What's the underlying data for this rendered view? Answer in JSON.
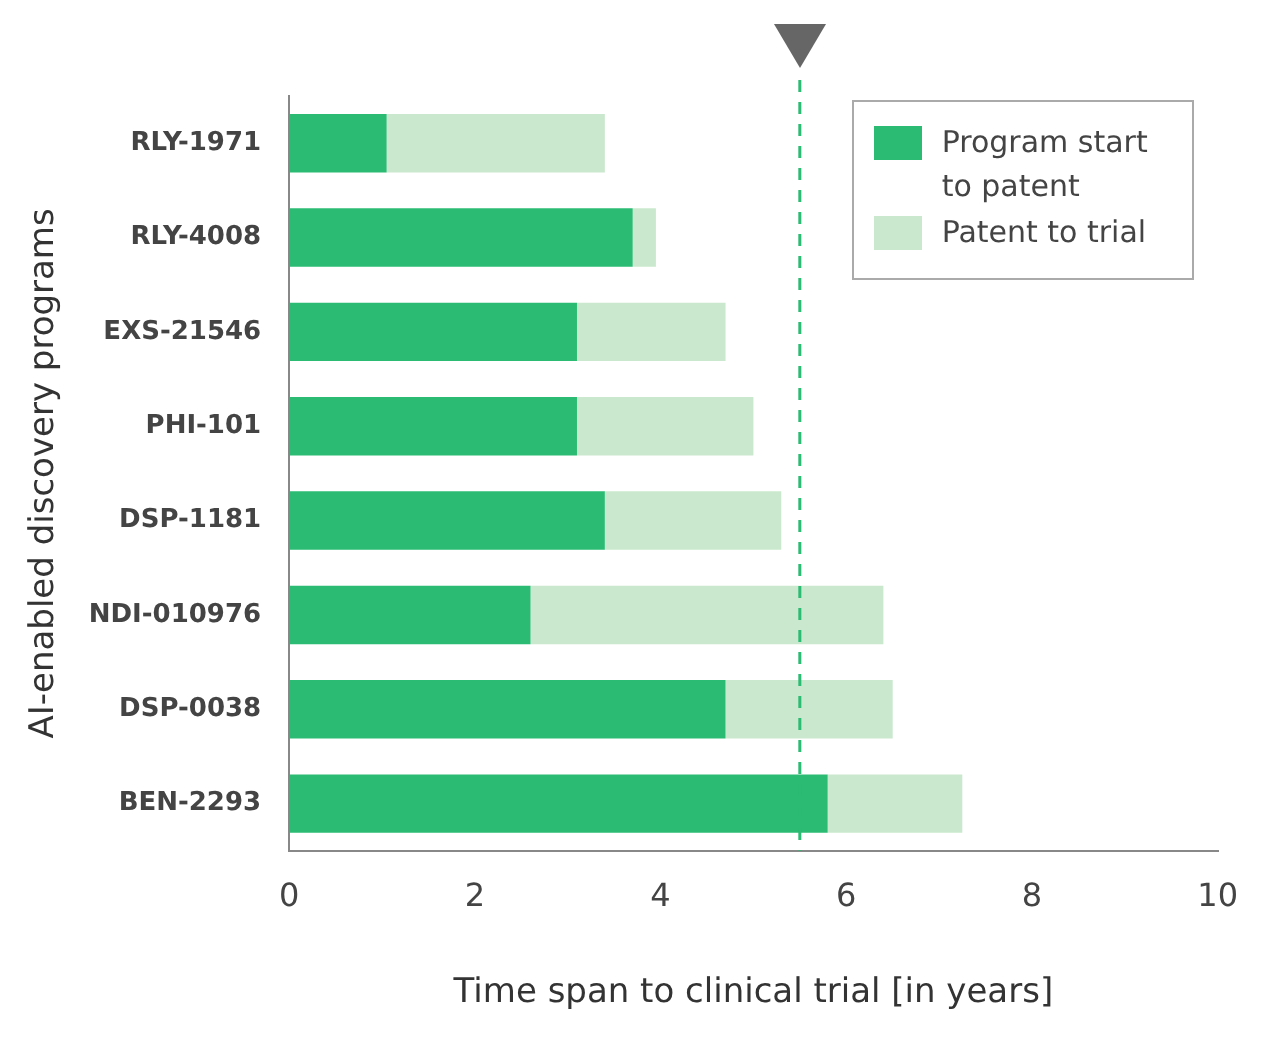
{
  "chart_data": {
    "type": "bar",
    "orientation": "horizontal",
    "stacked": true,
    "xlabel": "Time span to clinical trial [in years]",
    "ylabel": "AI-enabled discovery programs",
    "categories": [
      "RLY-1971",
      "RLY-4008",
      "EXS-21546",
      "PHI-101",
      "DSP-1181",
      "NDI-010976",
      "DSP-0038",
      "BEN-2293"
    ],
    "series": [
      {
        "name": "Program start to patent",
        "color": "#2bbb73",
        "values": [
          1.05,
          3.7,
          3.1,
          3.1,
          3.4,
          2.6,
          4.7,
          5.8
        ]
      },
      {
        "name": "Patent to trial",
        "color": "#cae8cd",
        "values": [
          2.35,
          0.25,
          1.6,
          1.9,
          1.9,
          3.8,
          1.8,
          1.45
        ]
      }
    ],
    "xlim": [
      0,
      10
    ],
    "xticks": [
      0,
      2,
      4,
      6,
      8,
      10
    ],
    "grid": false,
    "legend": "top right",
    "ref_lines": [
      {
        "axis": "x",
        "value": 5.5,
        "color": "#2bbb73",
        "line_style": "dashed"
      }
    ]
  }
}
